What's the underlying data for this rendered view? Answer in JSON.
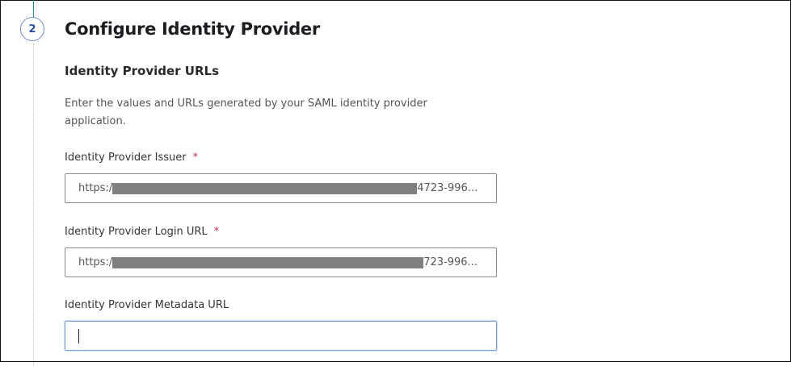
{
  "step": {
    "number": "2",
    "title": "Configure Identity Provider"
  },
  "section": {
    "title": "Identity Provider URLs",
    "description": "Enter the values and URLs generated by your SAML identity provider application."
  },
  "fields": [
    {
      "label": "Identity Provider Issuer",
      "required": true,
      "value_prefix": "https:/",
      "value_suffix": "4723-996...",
      "redacted": true
    },
    {
      "label": "Identity Provider Login URL",
      "required": true,
      "value_prefix": "https:/",
      "value_suffix": "723-996...",
      "redacted": true
    },
    {
      "label": "Identity Provider Metadata URL",
      "required": false,
      "value": "",
      "focused": true
    }
  ],
  "required_marker": "*",
  "colors": {
    "accent": "#6f8fcf",
    "required": "#c0305a",
    "progress_line": "#2f8a7a"
  }
}
